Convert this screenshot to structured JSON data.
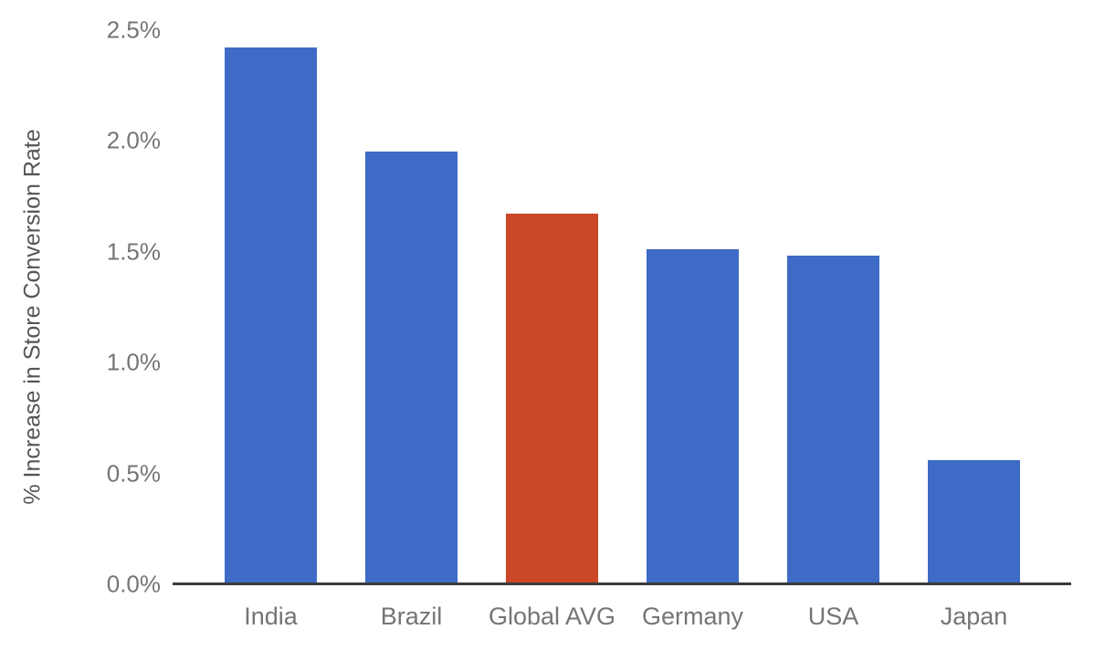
{
  "chart_data": {
    "type": "bar",
    "title": "",
    "categories": [
      "India",
      "Brazil",
      "Global AVG",
      "Germany",
      "USA",
      "Japan"
    ],
    "values": [
      2.42,
      1.95,
      1.67,
      1.51,
      1.48,
      0.56
    ],
    "units": "percent",
    "bar_colors": [
      "#3D6BC5",
      "#3D6BC5",
      "#CA4727",
      "#3D6BC5",
      "#3D6BC5",
      "#3D6BC5"
    ],
    "highlight_category": "Global AVG",
    "xlabel": "",
    "ylabel": "% Increase in Store Conversion Rate",
    "ylim": [
      0,
      2.5
    ],
    "yticks": [
      0.0,
      0.5,
      1.0,
      1.5,
      2.0,
      2.5
    ],
    "ytick_labels": [
      "0.0%",
      "0.5%",
      "1.0%",
      "1.5%",
      "2.0%",
      "2.5%"
    ],
    "grid": false,
    "legend": "none",
    "colors": {
      "bar_default": "#3D6BC5",
      "bar_highlight": "#CA4727",
      "axis_line": "#3b3b3b",
      "tick_text": "#757575",
      "axis_title_text": "#555557",
      "background": "#ffffff"
    }
  }
}
